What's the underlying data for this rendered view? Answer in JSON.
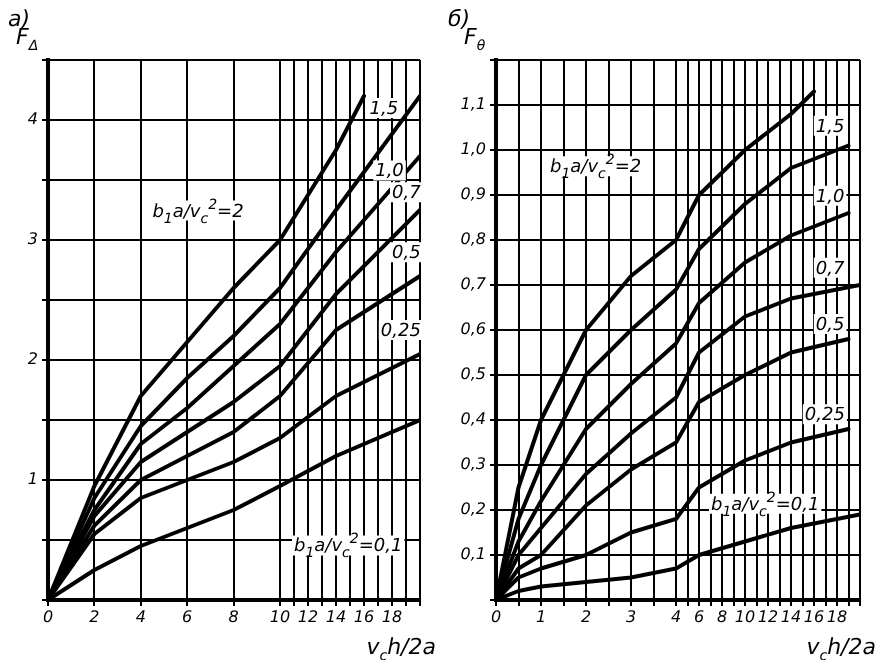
{
  "chart_data": [
    {
      "type": "line",
      "title": "а)",
      "ylabel": "F$_{Δ}$",
      "xlim": [
        0,
        10
      ],
      "ylim": [
        0,
        4.5
      ],
      "xticks": [
        0,
        2,
        4,
        6,
        8
      ],
      "yticks": [
        {
          "value": 0,
          "label": null
        },
        {
          "value": 0.5,
          "label": null
        },
        1,
        {
          "value": 1.5,
          "label": null
        },
        2,
        {
          "value": 2.5,
          "label": null
        },
        3,
        {
          "value": 3.5,
          "label": null
        },
        4,
        {
          "value": 4.5,
          "label": null
        }
      ],
      "grid": true,
      "legend": false,
      "marker": "none",
      "line_style": "solid",
      "series": [
        {
          "name": "b$_{1}$a/v$_{c}$$^{2}$=2",
          "color": "#000000",
          "x": [
            0,
            2,
            4,
            6,
            8,
            10
          ],
          "values": [
            0,
            0.95,
            1.7,
            2.15,
            2.6,
            3.0
          ]
        },
        {
          "color": "#000000",
          "x": [
            0,
            2,
            4,
            6,
            8,
            10
          ],
          "values": [
            0,
            0.85,
            1.45,
            1.85,
            2.2,
            2.6
          ]
        },
        {
          "color": "#000000",
          "x": [
            0,
            2,
            4,
            6,
            8,
            10
          ],
          "values": [
            0,
            0.75,
            1.3,
            1.6,
            1.95,
            2.3
          ]
        },
        {
          "color": "#000000",
          "x": [
            0,
            2,
            4,
            6,
            8,
            10
          ],
          "values": [
            0,
            0.7,
            1.15,
            1.4,
            1.65,
            1.95
          ]
        },
        {
          "color": "#000000",
          "x": [
            0,
            2,
            4,
            6,
            8,
            10
          ],
          "values": [
            0,
            0.62,
            1.0,
            1.2,
            1.4,
            1.7
          ]
        },
        {
          "color": "#000000",
          "x": [
            0,
            2,
            4,
            6,
            8,
            10
          ],
          "values": [
            0,
            0.55,
            0.85,
            1.0,
            1.15,
            1.35
          ]
        },
        {
          "color": "#000000",
          "x": [
            0,
            2,
            4,
            6,
            8,
            10
          ],
          "values": [
            0,
            0.25,
            0.45,
            0.6,
            0.75,
            0.95
          ]
        }
      ]
    },
    {
      "type": "line",
      "xlabel": "v$_{c}$h/2a",
      "xlim": [
        10,
        20
      ],
      "ylim": [
        0,
        4.5
      ],
      "tick_labels": "x",
      "xticks": [
        10,
        {
          "value": 11,
          "label": null
        },
        12,
        {
          "value": 13,
          "label": null
        },
        14,
        {
          "value": 15,
          "label": null
        },
        16,
        {
          "value": 17,
          "label": null
        },
        18,
        {
          "value": 19,
          "label": null
        },
        {
          "value": 20,
          "label": null
        }
      ],
      "yticks": [
        {
          "value": 0,
          "label": null
        },
        {
          "value": 0.5,
          "label": null
        },
        {
          "value": 1,
          "label": null
        },
        {
          "value": 1.5,
          "label": null
        },
        {
          "value": 2,
          "label": null
        },
        {
          "value": 2.5,
          "label": null
        },
        {
          "value": 3,
          "label": null
        },
        {
          "value": 3.5,
          "label": null
        },
        {
          "value": 4,
          "label": null
        },
        {
          "value": 4.5,
          "label": null
        }
      ],
      "grid": true,
      "legend": false,
      "marker": "none",
      "line_style": "solid",
      "series": [
        {
          "color": "#000000",
          "x": [
            10,
            14,
            16
          ],
          "values": [
            3.0,
            3.75,
            4.2
          ]
        },
        {
          "name": "1,5",
          "color": "#000000",
          "x": [
            10,
            14,
            20
          ],
          "values": [
            2.6,
            3.25,
            4.2
          ]
        },
        {
          "name": "1,0",
          "color": "#000000",
          "x": [
            10,
            14,
            20
          ],
          "values": [
            2.3,
            2.9,
            3.7
          ]
        },
        {
          "name": "0,7",
          "color": "#000000",
          "x": [
            10,
            14,
            20
          ],
          "values": [
            1.95,
            2.55,
            3.25
          ]
        },
        {
          "name": "0,5",
          "color": "#000000",
          "x": [
            10,
            14,
            20
          ],
          "values": [
            1.7,
            2.25,
            2.7
          ]
        },
        {
          "name": "0,25",
          "color": "#000000",
          "x": [
            10,
            14,
            20
          ],
          "values": [
            1.35,
            1.7,
            2.05
          ]
        },
        {
          "name": "b$_{1}$a/v$_{c}$$^{2}$=0,1",
          "color": "#000000",
          "x": [
            10,
            14,
            20
          ],
          "values": [
            0.95,
            1.2,
            1.5
          ]
        }
      ]
    },
    {
      "type": "line",
      "title": "б)",
      "ylabel": "F$_{θ}$",
      "xlim": [
        0,
        4
      ],
      "ylim": [
        0,
        1.2
      ],
      "xticks": [
        0,
        {
          "value": 0.5,
          "label": null
        },
        1,
        {
          "value": 1.5,
          "label": null
        },
        2,
        {
          "value": 2.5,
          "label": null
        },
        3,
        {
          "value": 3.5,
          "label": null
        }
      ],
      "yticks": [
        {
          "value": 0,
          "label": null
        },
        {
          "value": 0.1,
          "label": "0,1"
        },
        {
          "value": 0.2,
          "label": "0,2"
        },
        {
          "value": 0.3,
          "label": "0,3"
        },
        {
          "value": 0.4,
          "label": "0,4"
        },
        {
          "value": 0.5,
          "label": "0,5"
        },
        {
          "value": 0.6,
          "label": "0,6"
        },
        {
          "value": 0.7,
          "label": "0,7"
        },
        {
          "value": 0.8,
          "label": "0,8"
        },
        {
          "value": 0.9,
          "label": "0,9"
        },
        {
          "value": 1.0,
          "label": "1,0"
        },
        {
          "value": 1.1,
          "label": "1,1"
        },
        {
          "value": 1.2,
          "label": null
        }
      ],
      "grid": true,
      "legend": false,
      "marker": "none",
      "line_style": "solid",
      "series": [
        {
          "name": "b$_{1}$a/v$_{c}$$^{2}$=2",
          "color": "#000000",
          "x": [
            0,
            0.5,
            1,
            2,
            3,
            4
          ],
          "values": [
            0,
            0.25,
            0.4,
            0.6,
            0.72,
            0.8
          ]
        },
        {
          "color": "#000000",
          "x": [
            0,
            0.5,
            1,
            2,
            3,
            4
          ],
          "values": [
            0,
            0.18,
            0.3,
            0.5,
            0.6,
            0.69
          ]
        },
        {
          "color": "#000000",
          "x": [
            0,
            0.5,
            1,
            2,
            3,
            4
          ],
          "values": [
            0,
            0.13,
            0.22,
            0.38,
            0.48,
            0.57
          ]
        },
        {
          "color": "#000000",
          "x": [
            0,
            0.5,
            1,
            2,
            3,
            4
          ],
          "values": [
            0,
            0.1,
            0.16,
            0.28,
            0.37,
            0.45
          ]
        },
        {
          "color": "#000000",
          "x": [
            0,
            0.5,
            1,
            2,
            3,
            4
          ],
          "values": [
            0,
            0.07,
            0.1,
            0.21,
            0.29,
            0.35
          ]
        },
        {
          "color": "#000000",
          "x": [
            0,
            0.5,
            1,
            2,
            3,
            4
          ],
          "values": [
            0,
            0.05,
            0.07,
            0.1,
            0.15,
            0.18
          ]
        },
        {
          "color": "#000000",
          "x": [
            0,
            0.5,
            1,
            2,
            3,
            4
          ],
          "values": [
            0,
            0.02,
            0.03,
            0.04,
            0.05,
            0.07
          ]
        }
      ]
    },
    {
      "type": "line",
      "xlabel": "v$_{c}$h/2a",
      "xlim": [
        4,
        20
      ],
      "ylim": [
        0,
        1.2
      ],
      "tick_labels": "x",
      "xticks": [
        4,
        {
          "value": 5,
          "label": null
        },
        6,
        {
          "value": 7,
          "label": null
        },
        8,
        {
          "value": 9,
          "label": null
        },
        10,
        {
          "value": 11,
          "label": null
        },
        12,
        {
          "value": 13,
          "label": null
        },
        14,
        {
          "value": 15,
          "label": null
        },
        16,
        {
          "value": 17,
          "label": null
        },
        18,
        {
          "value": 19,
          "label": null
        },
        {
          "value": 20,
          "label": null
        }
      ],
      "yticks": [
        {
          "value": 0,
          "label": null
        },
        {
          "value": 0.1,
          "label": null
        },
        {
          "value": 0.2,
          "label": null
        },
        {
          "value": 0.3,
          "label": null
        },
        {
          "value": 0.4,
          "label": null
        },
        {
          "value": 0.5,
          "label": null
        },
        {
          "value": 0.6,
          "label": null
        },
        {
          "value": 0.7,
          "label": null
        },
        {
          "value": 0.8,
          "label": null
        },
        {
          "value": 0.9,
          "label": null
        },
        {
          "value": 1.0,
          "label": null
        },
        {
          "value": 1.1,
          "label": null
        },
        {
          "value": 1.2,
          "label": null
        }
      ],
      "grid": true,
      "legend": false,
      "marker": "none",
      "line_style": "solid",
      "series": [
        {
          "color": "#000000",
          "x": [
            4,
            6,
            10,
            14,
            16
          ],
          "values": [
            0.8,
            0.9,
            1.0,
            1.08,
            1.13
          ]
        },
        {
          "name": "1,5",
          "color": "#000000",
          "x": [
            4,
            6,
            10,
            14,
            19
          ],
          "values": [
            0.69,
            0.78,
            0.88,
            0.96,
            1.01
          ]
        },
        {
          "name": "1,0",
          "color": "#000000",
          "x": [
            4,
            6,
            10,
            14,
            19
          ],
          "values": [
            0.57,
            0.66,
            0.75,
            0.81,
            0.86
          ]
        },
        {
          "name": "0,7",
          "color": "#000000",
          "x": [
            4,
            6,
            10,
            14,
            20
          ],
          "values": [
            0.45,
            0.55,
            0.63,
            0.67,
            0.7
          ]
        },
        {
          "name": "0,5",
          "color": "#000000",
          "x": [
            4,
            6,
            10,
            14,
            19
          ],
          "values": [
            0.35,
            0.44,
            0.5,
            0.55,
            0.58
          ]
        },
        {
          "name": "0,25",
          "color": "#000000",
          "x": [
            4,
            6,
            10,
            14,
            19
          ],
          "values": [
            0.18,
            0.25,
            0.31,
            0.35,
            0.38
          ]
        },
        {
          "name": "b$_{1}$a/v$_{c}$$^{2}$=0,1",
          "color": "#000000",
          "x": [
            4,
            6,
            10,
            14,
            20
          ],
          "values": [
            0.07,
            0.1,
            0.13,
            0.16,
            0.19
          ]
        }
      ]
    }
  ]
}
